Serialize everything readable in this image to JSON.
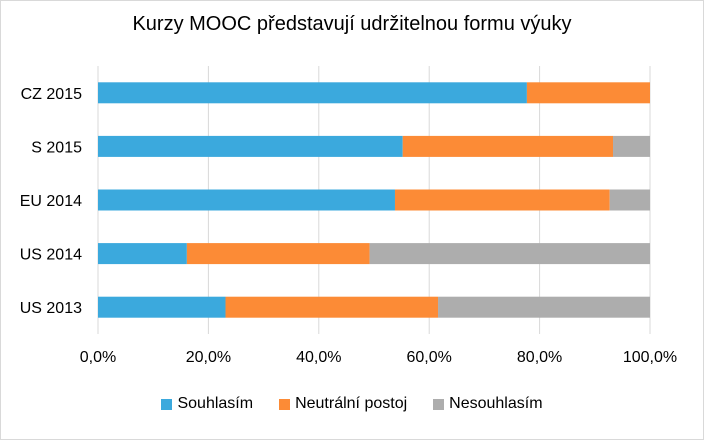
{
  "chart_data": {
    "type": "bar",
    "orientation": "horizontal",
    "stacked": true,
    "title": "Kurzy MOOC představují udržitelnou formu výuky",
    "xlabel": "",
    "ylabel": "",
    "categories": [
      "CZ 2015",
      "S 2015",
      "EU 2014",
      "US 2014",
      "US 2013"
    ],
    "series": [
      {
        "name": "Souhlasím",
        "color": "#3BA9DD",
        "values": [
          77.7,
          55.2,
          53.8,
          16.1,
          23.1
        ]
      },
      {
        "name": "Neutrální postoj",
        "color": "#FC8B36",
        "values": [
          22.3,
          38.1,
          38.9,
          33.1,
          38.5
        ]
      },
      {
        "name": "Nesouhlasím",
        "color": "#ADADAD",
        "values": [
          0.0,
          6.7,
          7.3,
          50.8,
          38.4
        ]
      }
    ],
    "xlim": [
      0,
      100
    ],
    "xticks": [
      "0,0%",
      "20,0%",
      "40,0%",
      "60,0%",
      "80,0%",
      "100,0%"
    ],
    "grid": true,
    "legend": "bottom"
  }
}
